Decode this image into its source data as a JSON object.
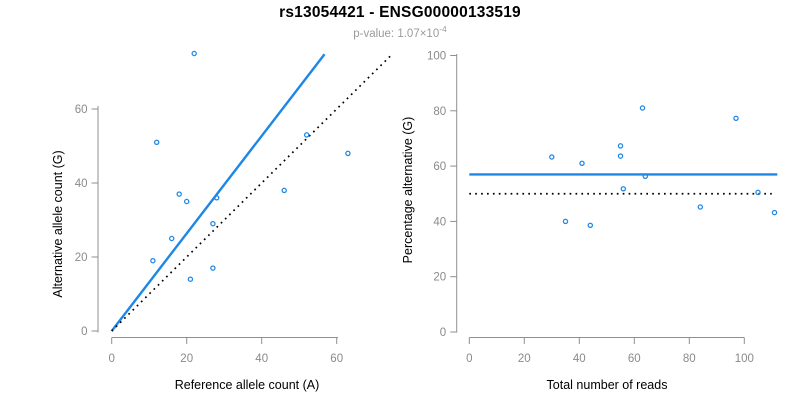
{
  "figure": {
    "title": "rs13054421 - ENSG00000133519",
    "pvalue_prefix": "p-value: ",
    "pvalue_base": "1.07×10",
    "pvalue_exponent": "-4"
  },
  "colors": {
    "accent_blue": "#1e87e5",
    "line_black": "#000000",
    "axis_gray": "#8f8f8f",
    "tick_label_gray": "#8a8a8a",
    "subtitle_gray": "#9b9b9b"
  },
  "chart_data": [
    {
      "id": "allele-counts",
      "type": "scatter",
      "xlabel": "Reference allele count (A)",
      "ylabel": "Alternative allele count (G)",
      "x_ticks": [
        0,
        20,
        40,
        60
      ],
      "y_ticks": [
        0,
        20,
        40,
        60
      ],
      "xlim": [
        -3,
        75
      ],
      "ylim": [
        -3,
        75
      ],
      "grid": false,
      "points": [
        [
          22,
          75
        ],
        [
          12,
          51
        ],
        [
          52,
          53
        ],
        [
          63,
          48
        ],
        [
          46,
          38
        ],
        [
          18,
          37
        ],
        [
          20,
          35
        ],
        [
          28,
          36
        ],
        [
          27,
          29
        ],
        [
          16,
          25
        ],
        [
          11,
          19
        ],
        [
          27,
          17
        ],
        [
          21,
          14
        ]
      ],
      "lines": [
        {
          "name": "fitted-allelic-ratio-line",
          "style": "solid",
          "color": "#1e87e5",
          "x1": 0,
          "y1": 0,
          "x2": 56.75,
          "y2": 74.8
        },
        {
          "name": "identity-line",
          "style": "dotted",
          "color": "#000000",
          "x1": 0,
          "y1": 0,
          "x2": 74.3,
          "y2": 74.3
        }
      ]
    },
    {
      "id": "percentage-vs-coverage",
      "type": "scatter",
      "xlabel": "Total number of reads",
      "ylabel": "Percentage alternative (G)",
      "x_ticks": [
        0,
        20,
        40,
        60,
        80,
        100
      ],
      "y_ticks": [
        0,
        20,
        40,
        60,
        80,
        100
      ],
      "xlim": [
        -4.5,
        114.5
      ],
      "ylim": [
        -4,
        104
      ],
      "grid": false,
      "points": [
        [
          97,
          77.3
        ],
        [
          63,
          81.0
        ],
        [
          105,
          50.5
        ],
        [
          111,
          43.2
        ],
        [
          84,
          45.2
        ],
        [
          55,
          67.3
        ],
        [
          55,
          63.6
        ],
        [
          64,
          56.3
        ],
        [
          56,
          51.8
        ],
        [
          41,
          61.0
        ],
        [
          30,
          63.3
        ],
        [
          44,
          38.6
        ],
        [
          35,
          40.0
        ]
      ],
      "lines": [
        {
          "name": "mean-percentage-line",
          "style": "solid",
          "color": "#1e87e5",
          "x1": 0,
          "y1": 57,
          "x2": 112,
          "y2": 57
        },
        {
          "name": "expected-50-percent-line",
          "style": "dotted",
          "color": "#000000",
          "x1": 0,
          "y1": 50,
          "x2": 110,
          "y2": 50
        }
      ]
    }
  ]
}
